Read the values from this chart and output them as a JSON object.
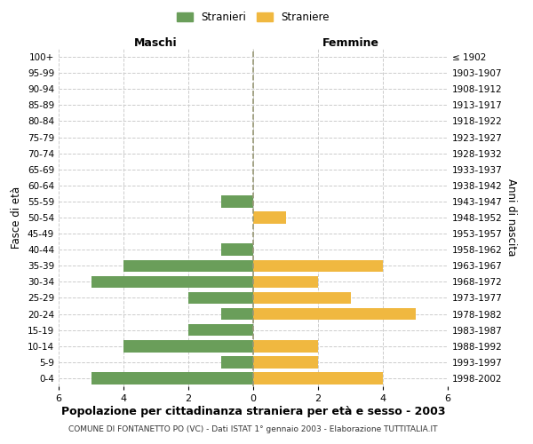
{
  "age_groups": [
    "100+",
    "95-99",
    "90-94",
    "85-89",
    "80-84",
    "75-79",
    "70-74",
    "65-69",
    "60-64",
    "55-59",
    "50-54",
    "45-49",
    "40-44",
    "35-39",
    "30-34",
    "25-29",
    "20-24",
    "15-19",
    "10-14",
    "5-9",
    "0-4"
  ],
  "birth_years": [
    "≤ 1902",
    "1903-1907",
    "1908-1912",
    "1913-1917",
    "1918-1922",
    "1923-1927",
    "1928-1932",
    "1933-1937",
    "1938-1942",
    "1943-1947",
    "1948-1952",
    "1953-1957",
    "1958-1962",
    "1963-1967",
    "1968-1972",
    "1973-1977",
    "1978-1982",
    "1983-1987",
    "1988-1992",
    "1993-1997",
    "1998-2002"
  ],
  "maschi": [
    0,
    0,
    0,
    0,
    0,
    0,
    0,
    0,
    0,
    1,
    0,
    0,
    1,
    4,
    5,
    2,
    1,
    2,
    4,
    1,
    5
  ],
  "femmine": [
    0,
    0,
    0,
    0,
    0,
    0,
    0,
    0,
    0,
    0,
    1,
    0,
    0,
    4,
    2,
    3,
    5,
    0,
    2,
    2,
    4
  ],
  "maschi_color": "#6a9e5a",
  "femmine_color": "#f0b840",
  "title": "Popolazione per cittadinanza straniera per età e sesso - 2003",
  "subtitle": "COMUNE DI FONTANETTO PO (VC) - Dati ISTAT 1° gennaio 2003 - Elaborazione TUTTITALIA.IT",
  "xlabel_left": "Maschi",
  "xlabel_right": "Femmine",
  "ylabel_left": "Fasce di età",
  "ylabel_right": "Anni di nascita",
  "legend_stranieri": "Stranieri",
  "legend_straniere": "Straniere",
  "xlim": 6,
  "background_color": "#ffffff",
  "grid_color": "#cccccc"
}
